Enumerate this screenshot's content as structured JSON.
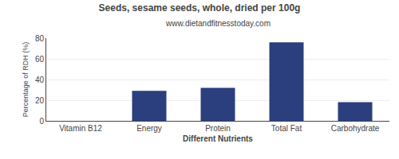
{
  "chart_data": {
    "type": "bar",
    "title": "Seeds, sesame seeds, whole, dried per 100g",
    "subtitle": "www.dietandfitnesstoday.com",
    "xlabel": "Different Nutrients",
    "ylabel": "Percentage of RDH (%)",
    "categories": [
      "Vitamin B12",
      "Energy",
      "Protein",
      "Total Fat",
      "Carbohydrate"
    ],
    "values": [
      0,
      29,
      32,
      76,
      18
    ],
    "color": "#2b3f7e",
    "ylim": [
      0,
      80
    ],
    "yticks": [
      0,
      20,
      40,
      60,
      80
    ],
    "grid": true
  }
}
